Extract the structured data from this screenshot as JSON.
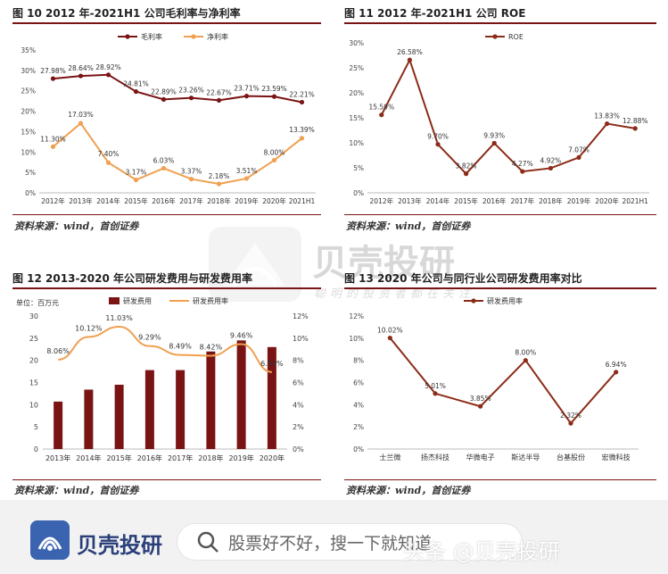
{
  "fig10": {
    "title": "图  10 2012 年-2021H1 公司毛利率与净利率",
    "source": "资料来源：wind，首创证券"
  },
  "fig11": {
    "title": "图  11 2012 年-2021H1 公司 ROE",
    "source": "资料来源：wind，首创证券"
  },
  "fig12": {
    "title": "图  12 2013-2020 年公司研发费用与研发费用率",
    "source": "资料来源：wind，首创证券",
    "unit": "单位：百万元"
  },
  "fig13": {
    "title": "图  13 2020 年公司与同行业公司研发费用率对比",
    "source": "资料来源：wind，首创证券"
  },
  "watermark": {
    "name": "贝壳投研",
    "slogan": "聪明的投资者都在关注"
  },
  "footer": {
    "brand": "贝壳投研",
    "search_placeholder": "股票好不好，搜一下就知道",
    "credit": "头条 @贝壳投研"
  },
  "colors": {
    "dark_red": "#7a1414",
    "orange": "#f0a050",
    "brown": "#8b2c18",
    "accent_rule": "#7a1414"
  },
  "icons": [
    "search-icon",
    "brand-logo-icon",
    "watermark-logo-icon"
  ],
  "chart_data": [
    {
      "type": "line",
      "categories": [
        "2012年",
        "2013年",
        "2014年",
        "2015年",
        "2016年",
        "2017年",
        "2018年",
        "2019年",
        "2020年",
        "2021H1"
      ],
      "series": [
        {
          "name": "毛利率",
          "values": [
            27.98,
            28.64,
            28.92,
            24.81,
            22.89,
            23.26,
            22.67,
            23.71,
            23.59,
            22.21
          ],
          "color": "#7a1414",
          "labels": [
            "27.98%",
            "28.64%",
            "28.92%",
            "24.81%",
            "22.89%",
            "23.26%",
            "22.67%",
            "23.71%",
            "23.59%",
            "22.21%"
          ]
        },
        {
          "name": "净利率",
          "values": [
            11.3,
            17.03,
            7.4,
            3.17,
            6.03,
            3.37,
            2.18,
            3.51,
            8.0,
            13.39
          ],
          "color": "#f0a050",
          "labels": [
            "11.30%",
            "17.03%",
            "7.40%",
            "3.17%",
            "6.03%",
            "3.37%",
            "2.18%",
            "3.51%",
            "8.00%",
            "13.39%"
          ]
        }
      ],
      "yticks": [
        "0%",
        "5%",
        "10%",
        "15%",
        "20%",
        "25%",
        "30%",
        "35%"
      ],
      "ylim": [
        0,
        35
      ],
      "legend": "top"
    },
    {
      "type": "line",
      "categories": [
        "2012年",
        "2013年",
        "2014年",
        "2015年",
        "2016年",
        "2017年",
        "2018年",
        "2019年",
        "2020年",
        "2021H1"
      ],
      "series": [
        {
          "name": "ROE",
          "values": [
            15.59,
            26.58,
            9.7,
            3.82,
            9.93,
            4.27,
            4.92,
            7.07,
            13.83,
            12.88
          ],
          "color": "#8b2c18",
          "labels": [
            "15.59%",
            "26.58%",
            "9.70%",
            "3.82%",
            "9.93%",
            "4.27%",
            "4.92%",
            "7.07%",
            "13.83%",
            "12.88%"
          ]
        }
      ],
      "yticks": [
        "0%",
        "5%",
        "10%",
        "15%",
        "20%",
        "25%",
        "30%"
      ],
      "ylim": [
        0,
        30
      ],
      "legend": "top"
    },
    {
      "type": "bar",
      "categories": [
        "2013年",
        "2014年",
        "2015年",
        "2016年",
        "2017年",
        "2018年",
        "2019年",
        "2020年"
      ],
      "series": [
        {
          "name": "研发费用",
          "values": [
            10.7,
            13.4,
            14.5,
            17.8,
            17.8,
            22.0,
            24.5,
            23.0
          ],
          "color": "#7a1414"
        },
        {
          "name": "研发费用率",
          "values": [
            8.06,
            10.12,
            11.03,
            9.29,
            8.49,
            8.42,
            9.46,
            6.94
          ],
          "color": "#f0a050",
          "labels": [
            "8.06%",
            "10.12%",
            "11.03%",
            "9.29%",
            "8.49%",
            "8.42%",
            "9.46%",
            "6.94%"
          ]
        }
      ],
      "yticks_left": [
        "0",
        "5",
        "10",
        "15",
        "20",
        "25",
        "30"
      ],
      "yticks_right": [
        "0%",
        "2%",
        "4%",
        "6%",
        "8%",
        "10%",
        "12%"
      ],
      "ylim": [
        0,
        30
      ],
      "ylim_right": [
        0,
        12
      ],
      "legend": "top"
    },
    {
      "type": "line",
      "categories": [
        "士兰微",
        "扬杰科技",
        "华微电子",
        "斯达半导",
        "台基股份",
        "宏微科技"
      ],
      "series": [
        {
          "name": "研发费用率",
          "values": [
            10.02,
            5.01,
            3.85,
            8.0,
            2.32,
            6.94
          ],
          "color": "#8b2c18",
          "labels": [
            "10.02%",
            "5.01%",
            "3.85%",
            "8.00%",
            "2.32%",
            "6.94%"
          ]
        }
      ],
      "yticks": [
        "0%",
        "2%",
        "4%",
        "6%",
        "8%",
        "10%",
        "12%"
      ],
      "ylim": [
        0,
        12
      ],
      "legend": "top-left"
    }
  ]
}
